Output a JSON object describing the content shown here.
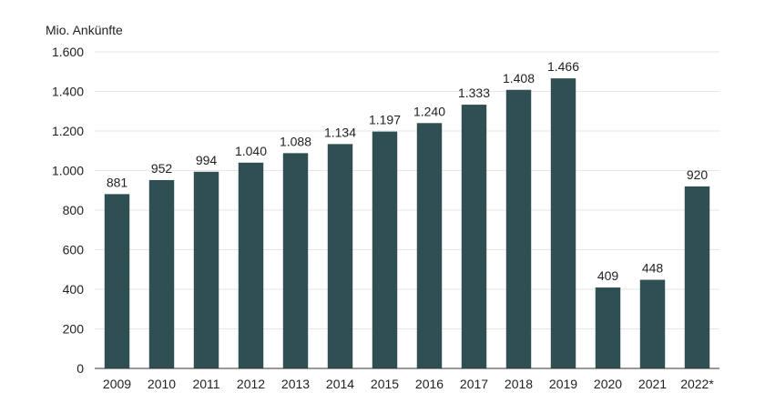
{
  "chart_data": {
    "type": "bar",
    "ylabel": "Mio. Ankünfte",
    "categories": [
      "2009",
      "2010",
      "2011",
      "2012",
      "2013",
      "2014",
      "2015",
      "2016",
      "2017",
      "2018",
      "2019",
      "2020",
      "2021",
      "2022*"
    ],
    "values": [
      881,
      952,
      994,
      1040,
      1088,
      1134,
      1197,
      1240,
      1333,
      1408,
      1466,
      409,
      448,
      920
    ],
    "value_labels": [
      "881",
      "952",
      "994",
      "1.040",
      "1.088",
      "1.134",
      "1.197",
      "1.240",
      "1.333",
      "1.408",
      "1.466",
      "409",
      "448",
      "920"
    ],
    "ylim": [
      0,
      1600
    ],
    "yticks": [
      0,
      200,
      400,
      600,
      800,
      1000,
      1200,
      1400,
      1600
    ],
    "ytick_labels": [
      "0",
      "200",
      "400",
      "600",
      "800",
      "1.000",
      "1.200",
      "1.400",
      "1.600"
    ],
    "grid": true,
    "bar_color": "#2f4f53"
  }
}
